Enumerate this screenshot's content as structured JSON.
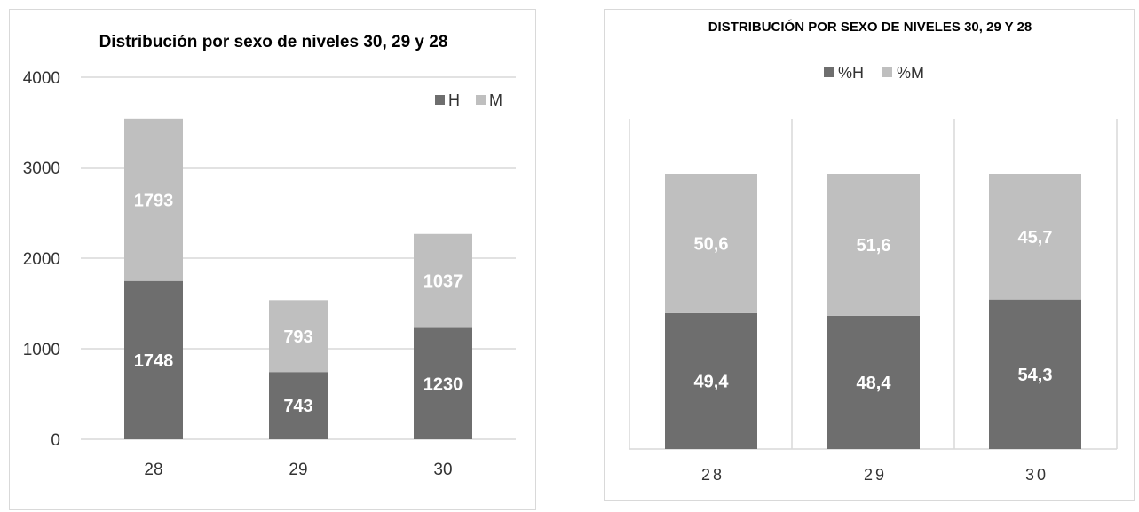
{
  "colors": {
    "H": "#6e6e6e",
    "M": "#bfbfbf",
    "grid": "#d9d9d9",
    "axis": "#d9d9d9"
  },
  "chart_data": [
    {
      "type": "bar",
      "stacked": true,
      "title": "Distribución por sexo de niveles 30, 29 y 28",
      "categories": [
        "28",
        "29",
        "30"
      ],
      "series": [
        {
          "name": "H",
          "values": [
            1748,
            743,
            1230
          ],
          "labels": [
            "1748",
            "743",
            "1230"
          ]
        },
        {
          "name": "M",
          "values": [
            1793,
            793,
            1037
          ],
          "labels": [
            "1793",
            "793",
            "1037"
          ]
        }
      ],
      "yticks": [
        "0",
        "1000",
        "2000",
        "3000",
        "4000"
      ],
      "ylim": [
        0,
        4000
      ],
      "grid": true,
      "legend": "top-right"
    },
    {
      "type": "bar",
      "stacked": true,
      "title": "DISTRIBUCIÓN POR SEXO DE NIVELES 30, 29 Y 28",
      "categories": [
        "28",
        "29",
        "30"
      ],
      "series": [
        {
          "name": "%H",
          "values": [
            49.4,
            48.4,
            54.3
          ],
          "labels": [
            "49,4",
            "48,4",
            "54,3"
          ]
        },
        {
          "name": "%M",
          "values": [
            50.6,
            51.6,
            45.7
          ],
          "labels": [
            "50,6",
            "51,6",
            "45,7"
          ]
        }
      ],
      "ylim": [
        0,
        100
      ],
      "grid": false,
      "legend": "top"
    }
  ]
}
